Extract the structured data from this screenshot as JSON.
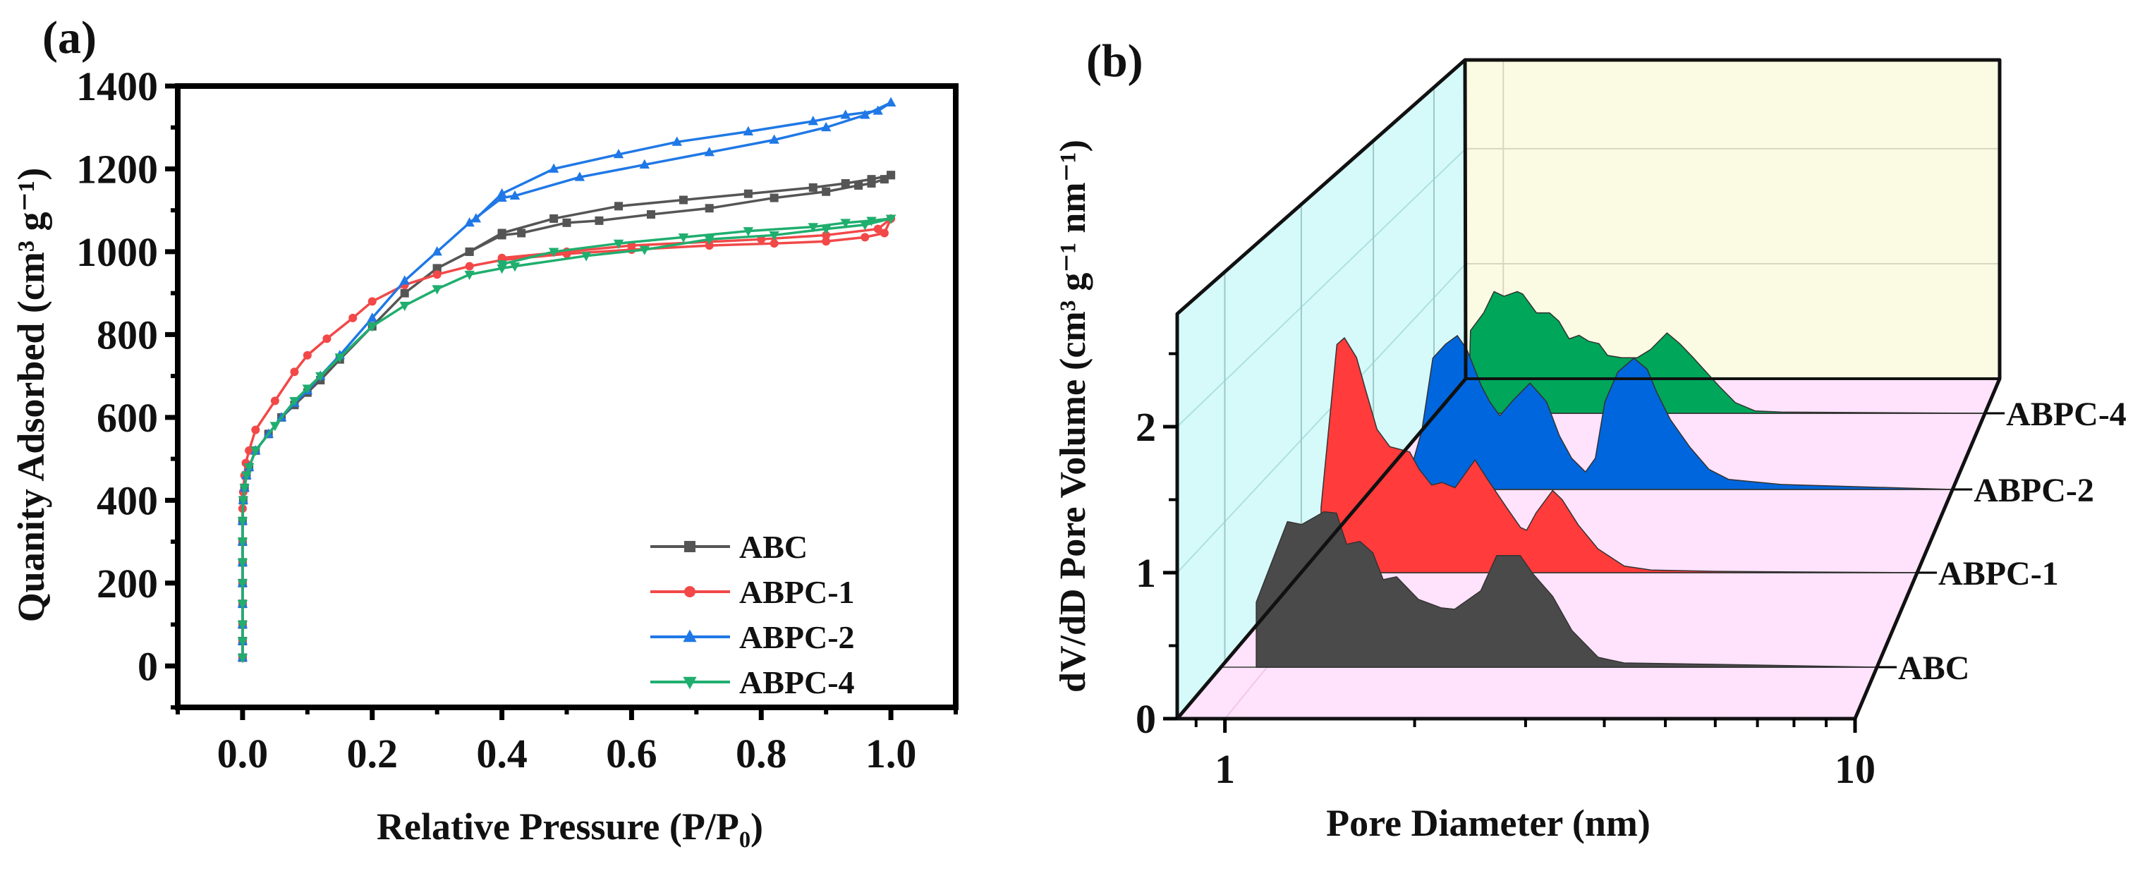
{
  "chart_data": [
    {
      "panel_label": "(a)",
      "type": "line",
      "xlabel": "Relative Pressure (P/P₀)",
      "ylabel": "Quanity Adsorbed (cm³ g⁻¹)",
      "xlim": [
        -0.1,
        1.1
      ],
      "ylim": [
        -100,
        1400
      ],
      "xticks": [
        "0.0",
        "0.2",
        "0.4",
        "0.6",
        "0.8",
        "1.0"
      ],
      "yticks": [
        "0",
        "200",
        "400",
        "600",
        "800",
        "1000",
        "1200",
        "1400"
      ],
      "legend_position": "bottom-right",
      "series": [
        {
          "name": "ABC",
          "color": "#555555",
          "marker": "square",
          "adsorption": {
            "x": [
              0,
              0,
              0,
              0,
              0,
              0,
              0,
              0,
              0.001,
              0.003,
              0.006,
              0.01,
              0.02,
              0.04,
              0.06,
              0.08,
              0.1,
              0.12,
              0.15,
              0.2,
              0.25,
              0.3,
              0.35,
              0.4,
              0.43,
              0.5,
              0.55,
              0.63,
              0.72,
              0.82,
              0.9,
              0.95,
              0.97,
              0.99,
              1.0
            ],
            "y": [
              20,
              60,
              100,
              150,
              200,
              250,
              300,
              350,
              400,
              430,
              460,
              480,
              520,
              560,
              600,
              630,
              660,
              690,
              740,
              820,
              900,
              960,
              1000,
              1040,
              1045,
              1070,
              1075,
              1090,
              1105,
              1130,
              1145,
              1160,
              1165,
              1175,
              1185
            ]
          },
          "desorption": {
            "x": [
              1.0,
              0.97,
              0.93,
              0.88,
              0.78,
              0.68,
              0.58,
              0.48,
              0.4,
              0.35,
              0.3
            ],
            "y": [
              1185,
              1175,
              1165,
              1155,
              1140,
              1125,
              1110,
              1080,
              1045,
              1000,
              960
            ]
          }
        },
        {
          "name": "ABPC-1",
          "color": "#f24848",
          "marker": "circle",
          "adsorption": {
            "x": [
              0,
              0,
              0,
              0,
              0,
              0,
              0,
              0,
              0.001,
              0.003,
              0.005,
              0.01,
              0.02,
              0.05,
              0.08,
              0.1,
              0.13,
              0.17,
              0.2,
              0.25,
              0.3,
              0.35,
              0.4,
              0.5,
              0.6,
              0.72,
              0.82,
              0.9,
              0.96,
              0.99,
              1.0
            ],
            "y": [
              20,
              60,
              100,
              150,
              200,
              250,
              300,
              380,
              420,
              460,
              490,
              520,
              570,
              640,
              710,
              750,
              790,
              840,
              880,
              920,
              945,
              965,
              980,
              995,
              1005,
              1015,
              1020,
              1025,
              1035,
              1045,
              1080
            ]
          },
          "desorption": {
            "x": [
              1.0,
              0.98,
              0.9,
              0.8,
              0.6,
              0.5,
              0.4
            ],
            "y": [
              1080,
              1055,
              1040,
              1030,
              1015,
              1000,
              985
            ]
          }
        },
        {
          "name": "ABPC-2",
          "color": "#1f78e6",
          "marker": "triangle-up",
          "adsorption": {
            "x": [
              0,
              0,
              0,
              0,
              0,
              0,
              0,
              0,
              0.001,
              0.003,
              0.006,
              0.01,
              0.02,
              0.04,
              0.06,
              0.08,
              0.1,
              0.12,
              0.15,
              0.2,
              0.25,
              0.3,
              0.35,
              0.4,
              0.42,
              0.52,
              0.62,
              0.72,
              0.82,
              0.9,
              0.96,
              1.0
            ],
            "y": [
              20,
              60,
              100,
              150,
              200,
              250,
              300,
              350,
              400,
              430,
              460,
              480,
              520,
              560,
              600,
              635,
              665,
              700,
              750,
              840,
              930,
              1000,
              1070,
              1130,
              1135,
              1180,
              1210,
              1240,
              1270,
              1300,
              1330,
              1360
            ]
          },
          "desorption": {
            "x": [
              1.0,
              0.98,
              0.93,
              0.88,
              0.78,
              0.67,
              0.58,
              0.48,
              0.4,
              0.36
            ],
            "y": [
              1360,
              1340,
              1330,
              1315,
              1290,
              1265,
              1235,
              1200,
              1140,
              1080
            ]
          }
        },
        {
          "name": "ABPC-4",
          "color": "#1fae6e",
          "marker": "triangle-down",
          "adsorption": {
            "x": [
              0,
              0,
              0,
              0,
              0,
              0,
              0,
              0,
              0.001,
              0.003,
              0.006,
              0.01,
              0.02,
              0.05,
              0.08,
              0.1,
              0.12,
              0.15,
              0.2,
              0.25,
              0.3,
              0.35,
              0.4,
              0.42,
              0.53,
              0.62,
              0.72,
              0.82,
              0.9,
              0.96,
              1.0
            ],
            "y": [
              20,
              60,
              100,
              150,
              200,
              250,
              300,
              350,
              400,
              430,
              460,
              480,
              520,
              580,
              640,
              670,
              700,
              745,
              820,
              870,
              910,
              945,
              960,
              965,
              990,
              1005,
              1030,
              1040,
              1055,
              1065,
              1080
            ]
          },
          "desorption": {
            "x": [
              1.0,
              0.97,
              0.93,
              0.88,
              0.78,
              0.68,
              0.58,
              0.48,
              0.4
            ],
            "y": [
              1080,
              1075,
              1070,
              1060,
              1050,
              1035,
              1020,
              1000,
              970
            ]
          }
        }
      ]
    },
    {
      "panel_label": "(b)",
      "type": "area",
      "xlabel": "Pore Diameter (nm)",
      "ylabel": "dV/dD Pore Volume (cm³ g⁻¹ nm⁻¹)",
      "xscale": "log",
      "xlim": [
        0.84,
        10
      ],
      "ylim": [
        0,
        2.77
      ],
      "xticks": [
        "1",
        "10"
      ],
      "yticks": [
        "0",
        "1",
        "2"
      ],
      "colors": {
        "back_wall": "#fbfae3",
        "left_wall": "#d6fafa",
        "floor": "#ffe2fb"
      },
      "series": [
        {
          "name": "ABC",
          "color": "#4a4a4a",
          "x": [
            0.96,
            0.96,
            1.08,
            1.14,
            1.24,
            1.3,
            1.35,
            1.42,
            1.49,
            1.55,
            1.63,
            1.77,
            1.93,
            2.03,
            2.24,
            2.38,
            2.6,
            2.73,
            2.94,
            3.16,
            3.49,
            3.85,
            5.44,
            10
          ],
          "y": [
            0,
            0.46,
            1.03,
            1.01,
            1.1,
            1.09,
            0.87,
            0.89,
            0.81,
            0.62,
            0.64,
            0.48,
            0.42,
            0.41,
            0.54,
            0.79,
            0.79,
            0.66,
            0.5,
            0.26,
            0.07,
            0.03,
            0.02,
            0
          ]
        },
        {
          "name": "ABPC-1",
          "color": "#ff3b3b",
          "x": [
            0.91,
            0.91,
            0.97,
            1.0,
            1.05,
            1.09,
            1.14,
            1.2,
            1.3,
            1.35,
            1.42,
            1.48,
            1.56,
            1.69,
            1.78,
            1.92,
            2.03,
            2.08,
            2.16,
            2.31,
            2.4,
            2.56,
            2.77,
            3.08,
            3.43,
            4.45,
            10
          ],
          "y": [
            0,
            0.49,
            1.72,
            1.77,
            1.62,
            1.37,
            1.08,
            0.95,
            0.91,
            0.78,
            0.66,
            0.68,
            0.64,
            0.85,
            0.7,
            0.49,
            0.34,
            0.32,
            0.45,
            0.62,
            0.55,
            0.36,
            0.18,
            0.05,
            0.02,
            0.01,
            0
          ]
        },
        {
          "name": "ABPC-2",
          "color": "#0066dd",
          "x": [
            1.0,
            1.0,
            1.04,
            1.09,
            1.15,
            1.21,
            1.26,
            1.34,
            1.39,
            1.45,
            1.54,
            1.65,
            1.77,
            1.87,
            1.97,
            2.09,
            2.18,
            2.27,
            2.4,
            2.57,
            2.72,
            2.83,
            3.0,
            3.26,
            3.54,
            3.85,
            4.81,
            10
          ],
          "y": [
            0,
            0.21,
            0.47,
            1.05,
            1.16,
            1.23,
            1.12,
            0.83,
            0.7,
            0.59,
            0.72,
            0.85,
            0.7,
            0.43,
            0.25,
            0.14,
            0.25,
            0.7,
            0.94,
            1.05,
            0.96,
            0.78,
            0.56,
            0.34,
            0.16,
            0.08,
            0.04,
            0
          ]
        },
        {
          "name": "ABPC-4",
          "color": "#00a65a",
          "x": [
            0.97,
            0.98,
            1.04,
            1.09,
            1.14,
            1.21,
            1.24,
            1.32,
            1.4,
            1.46,
            1.53,
            1.6,
            1.67,
            1.75,
            1.82,
            1.94,
            2.08,
            2.21,
            2.38,
            2.52,
            2.68,
            2.84,
            3.01,
            3.24,
            3.54,
            3.98,
            10
          ],
          "y": [
            0,
            0.7,
            0.85,
            1.03,
            0.99,
            1.03,
            1.01,
            0.85,
            0.85,
            0.78,
            0.63,
            0.66,
            0.61,
            0.59,
            0.49,
            0.47,
            0.47,
            0.54,
            0.68,
            0.59,
            0.47,
            0.35,
            0.23,
            0.09,
            0.02,
            0.01,
            0
          ]
        }
      ]
    }
  ]
}
